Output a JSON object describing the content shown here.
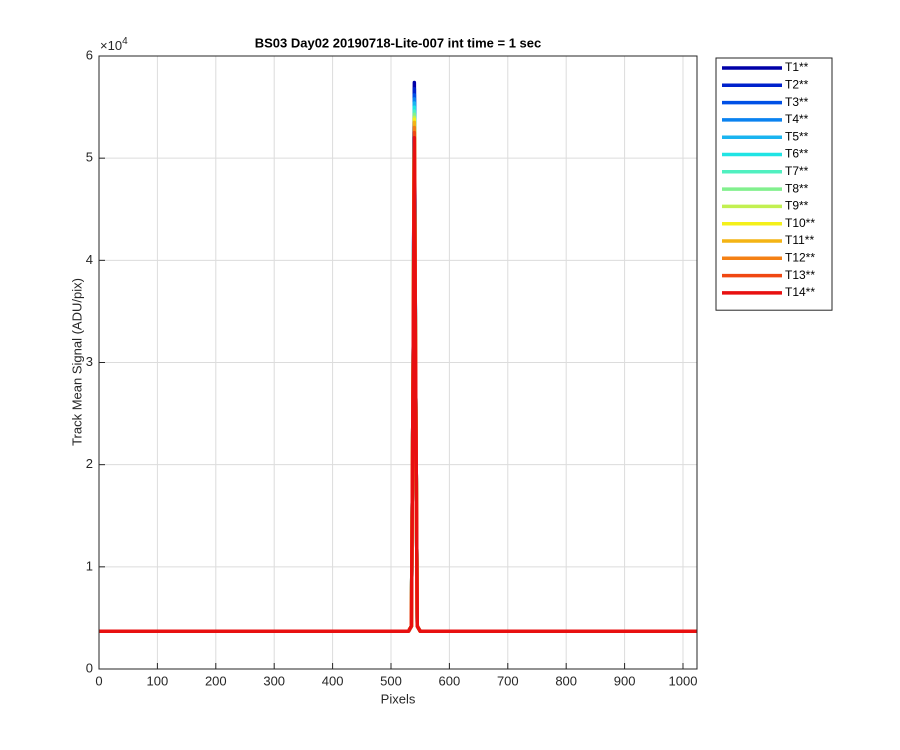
{
  "chart_data": {
    "type": "line",
    "title": "BS03 Day02 20190718-Lite-007 int time = 1 sec",
    "x_label": "Pixels",
    "y_label": "Track Mean Signal (ADU/pix)",
    "y_multiplier": {
      "base": "×10",
      "exponent": "4"
    },
    "x": [
      1,
      530,
      535,
      538,
      540,
      542,
      545,
      550,
      1024
    ],
    "xlim": [
      0,
      1024
    ],
    "xticks": [
      0,
      100,
      200,
      300,
      400,
      500,
      600,
      700,
      800,
      900,
      1000
    ],
    "ylim": [
      0,
      60000
    ],
    "yticks": [
      {
        "value": 0,
        "label": "0"
      },
      {
        "value": 10000,
        "label": "1"
      },
      {
        "value": 20000,
        "label": "2"
      },
      {
        "value": 30000,
        "label": "3"
      },
      {
        "value": 40000,
        "label": "4"
      },
      {
        "value": 50000,
        "label": "5"
      },
      {
        "value": 60000,
        "label": "6"
      }
    ],
    "grid": true,
    "legend": "outside-right",
    "series": [
      {
        "name": "T1**",
        "color": "#0000a8",
        "values": [
          3700,
          3700,
          4200,
          30000,
          57400,
          30000,
          4200,
          3700,
          3700
        ]
      },
      {
        "name": "T2**",
        "color": "#0022cc",
        "values": [
          3700,
          3700,
          4200,
          30000,
          56800,
          30000,
          4200,
          3700,
          3700
        ]
      },
      {
        "name": "T3**",
        "color": "#0050e6",
        "values": [
          3700,
          3700,
          4200,
          30000,
          56200,
          30000,
          4200,
          3700,
          3700
        ]
      },
      {
        "name": "T4**",
        "color": "#0a82f0",
        "values": [
          3700,
          3700,
          4200,
          30000,
          55800,
          30000,
          4200,
          3700,
          3700
        ]
      },
      {
        "name": "T5**",
        "color": "#1ab4f0",
        "values": [
          3700,
          3700,
          4200,
          30000,
          55400,
          30000,
          4200,
          3700,
          3700
        ]
      },
      {
        "name": "T6**",
        "color": "#20e4e4",
        "values": [
          3700,
          3700,
          4200,
          30000,
          55000,
          30000,
          4200,
          3700,
          3700
        ]
      },
      {
        "name": "T7**",
        "color": "#50f0c0",
        "values": [
          3700,
          3700,
          4200,
          30000,
          54600,
          30000,
          4200,
          3700,
          3700
        ]
      },
      {
        "name": "T8**",
        "color": "#82f08e",
        "values": [
          3700,
          3700,
          4200,
          30000,
          54300,
          30000,
          4200,
          3700,
          3700
        ]
      },
      {
        "name": "T9**",
        "color": "#c2f050",
        "values": [
          3700,
          3700,
          4200,
          30000,
          54000,
          30000,
          4200,
          3700,
          3700
        ]
      },
      {
        "name": "T10**",
        "color": "#f4f01a",
        "values": [
          3700,
          3700,
          4200,
          30000,
          53800,
          30000,
          4200,
          3700,
          3700
        ]
      },
      {
        "name": "T11**",
        "color": "#f4b414",
        "values": [
          3700,
          3700,
          4200,
          30000,
          53500,
          30000,
          4200,
          3700,
          3700
        ]
      },
      {
        "name": "T12**",
        "color": "#f48014",
        "values": [
          3700,
          3700,
          4200,
          30000,
          53000,
          30000,
          4200,
          3700,
          3700
        ]
      },
      {
        "name": "T13**",
        "color": "#f04812",
        "values": [
          3700,
          3700,
          4200,
          30000,
          52500,
          30000,
          4200,
          3700,
          3700
        ]
      },
      {
        "name": "T14**",
        "color": "#e81010",
        "values": [
          3700,
          3700,
          4200,
          30000,
          52000,
          30000,
          4200,
          3700,
          3700
        ]
      }
    ]
  }
}
